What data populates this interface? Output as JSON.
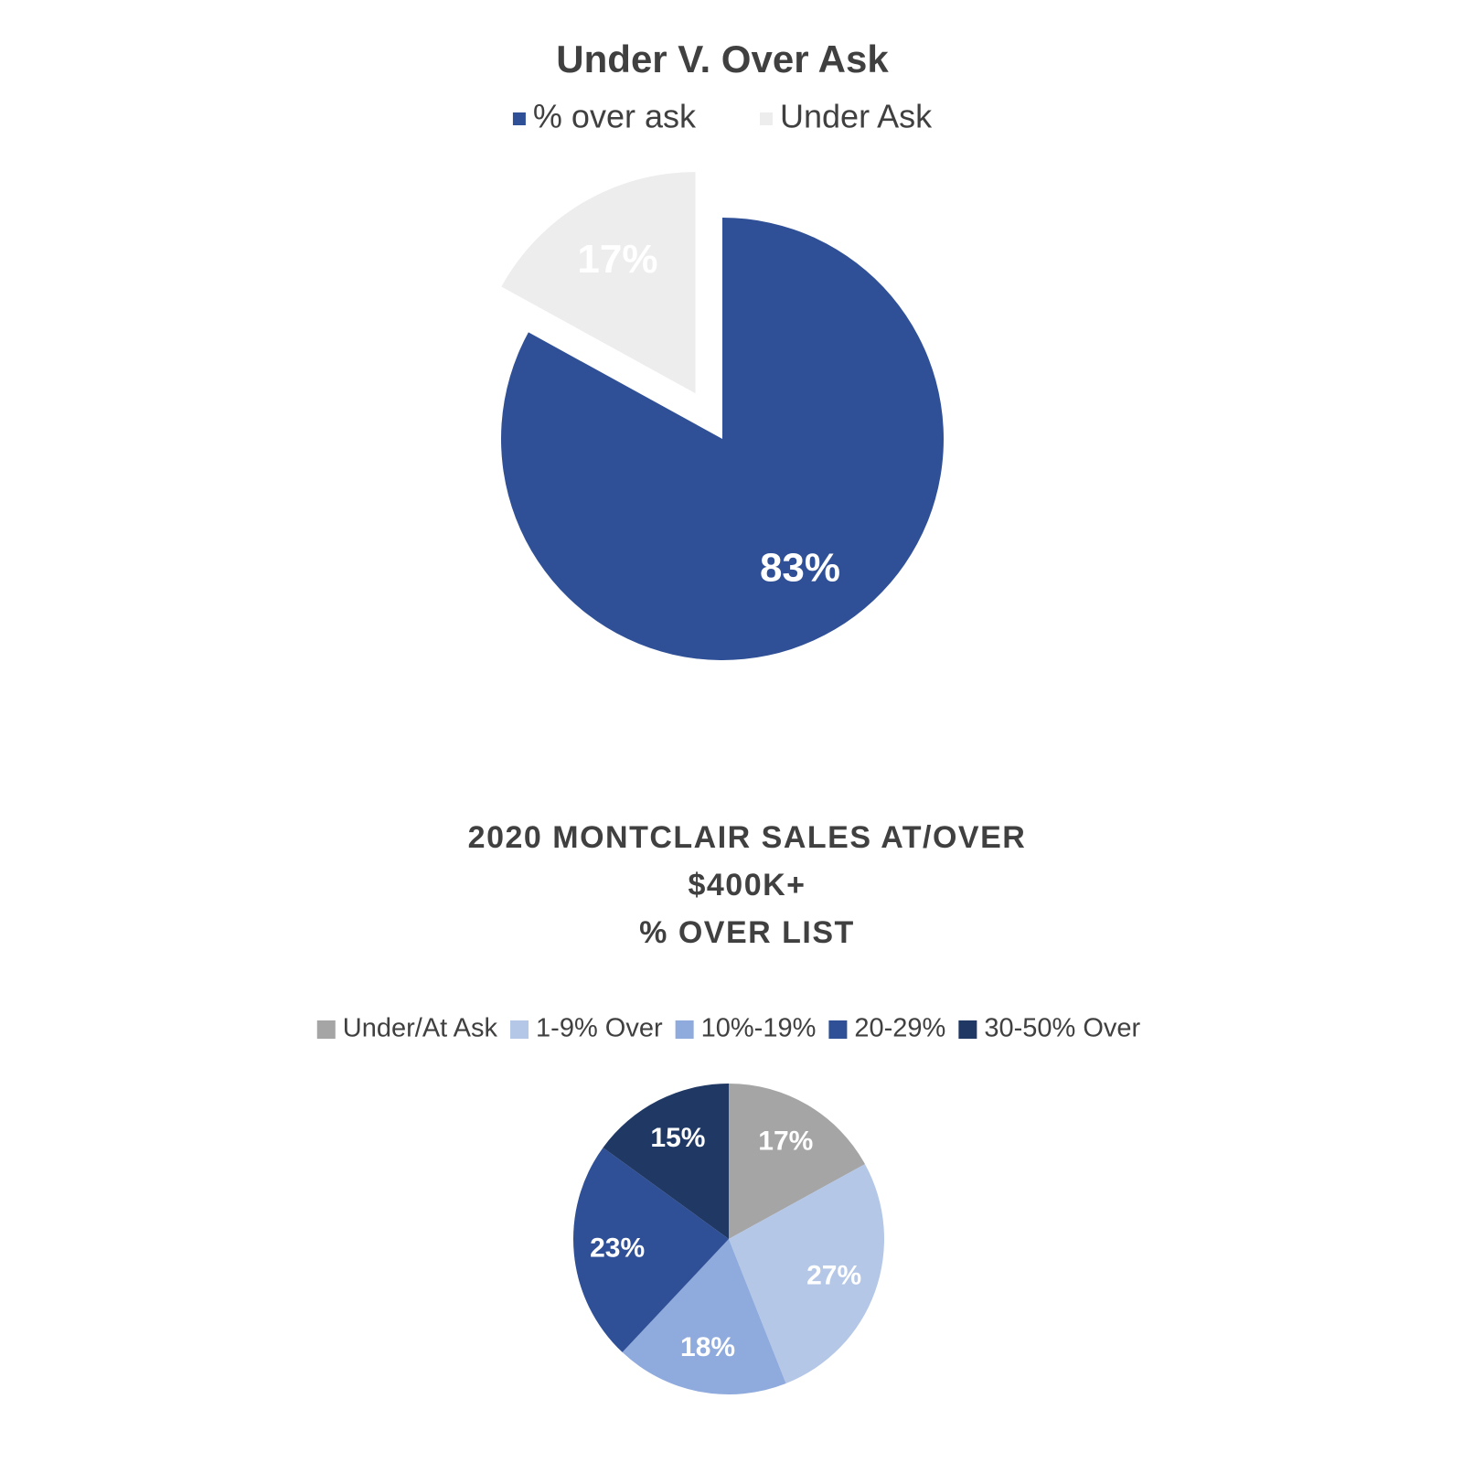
{
  "chart_data": [
    {
      "type": "pie",
      "title": "Under V. Over Ask",
      "categories": [
        "% over ask",
        "Under Ask"
      ],
      "values": [
        83,
        17
      ],
      "value_labels": [
        "83%",
        "17%"
      ],
      "colors": [
        "#2f5097",
        "#ededed"
      ]
    },
    {
      "type": "pie",
      "title": [
        "2020 MONTCLAIR SALES AT/OVER",
        "$400K+",
        "% OVER LIST"
      ],
      "categories": [
        "Under/At Ask",
        "1-9% Over",
        "10%-19%",
        "20-29%",
        "30-50% Over"
      ],
      "values": [
        17,
        27,
        18,
        23,
        15
      ],
      "value_labels": [
        "17%",
        "27%",
        "18%",
        "23%",
        "15%"
      ],
      "colors": [
        "#a5a5a5",
        "#b4c7e7",
        "#8faadc",
        "#2f5097",
        "#203864"
      ]
    }
  ]
}
